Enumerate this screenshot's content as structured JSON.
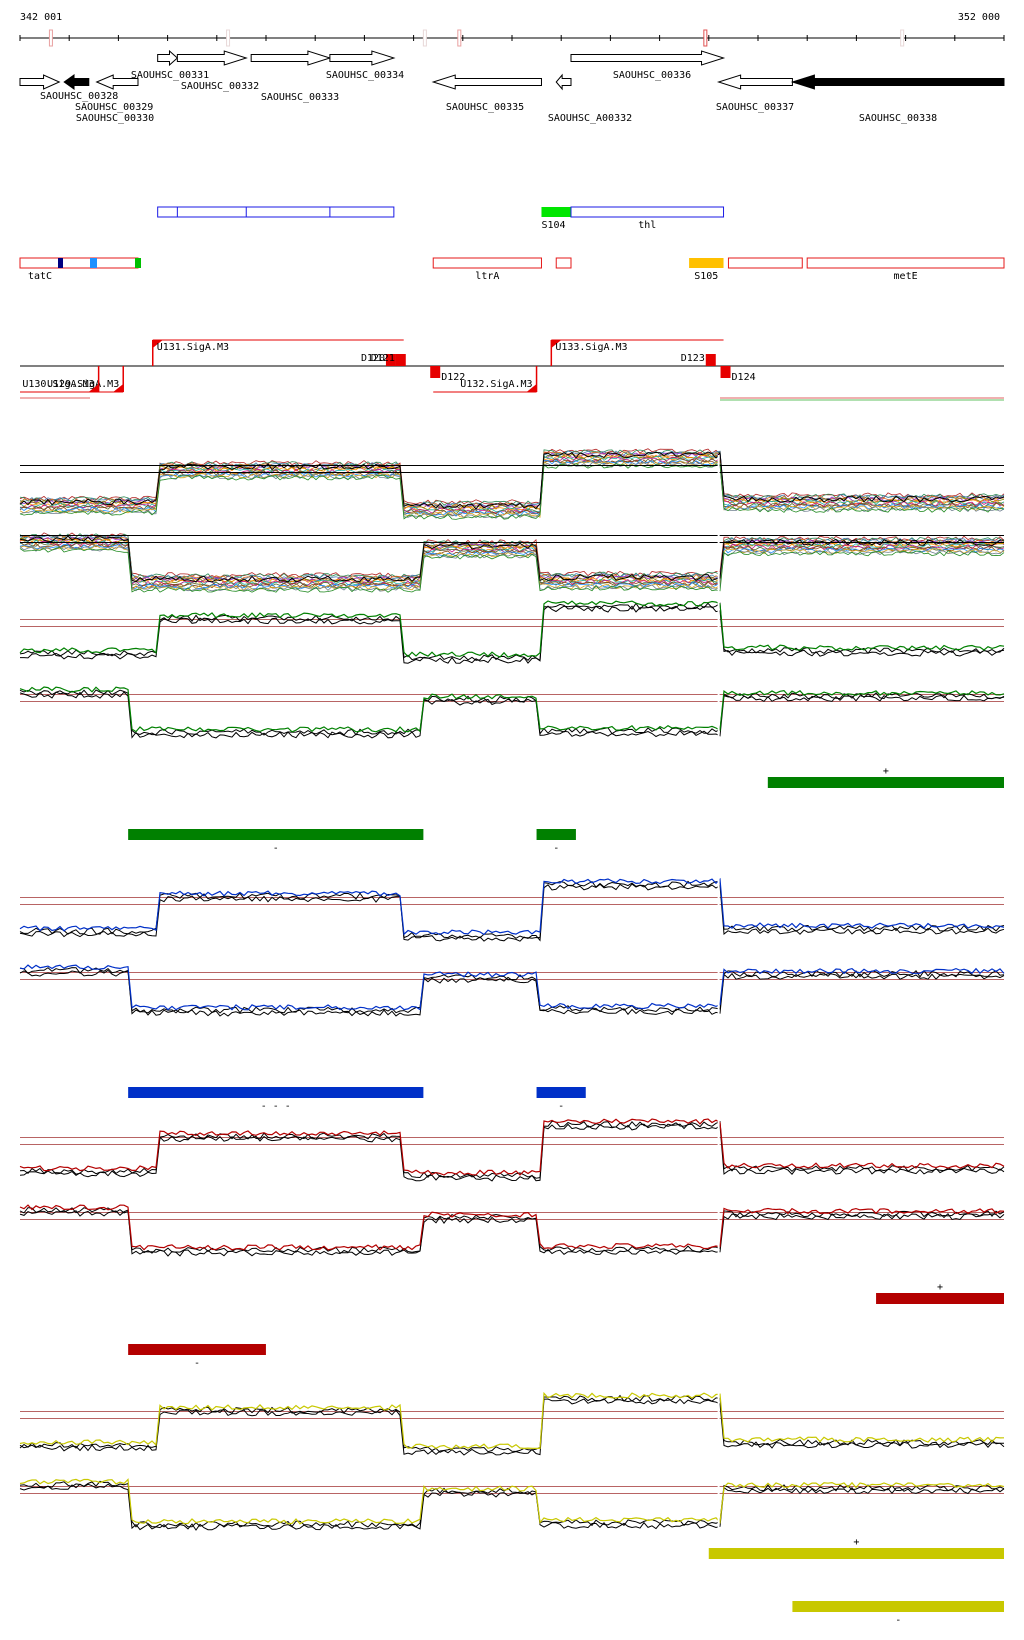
{
  "axis": {
    "start_label": "342 001",
    "end_label": "352 000",
    "start_bp": 342001,
    "end_bp": 352000
  },
  "colors": {
    "cds_outline": "#000000",
    "cds_filled": "#000000",
    "domain_box": "#1a1ae6",
    "feature_box": "#e61a1a",
    "promoter": "#e60000",
    "tatC_marks": [
      "#000080",
      "#1e90ff",
      "#00c000"
    ],
    "S104": "#00e600",
    "S105": "#ffc000",
    "track_green": "#008000",
    "track_blue": "#0030c8",
    "track_red": "#b40000",
    "track_yellow": "#c8c800",
    "threshold": "#a03030"
  },
  "genes": [
    {
      "name": "SAOUHSC_00328",
      "start": 342001,
      "end": 342400,
      "strand": "+",
      "filled": false
    },
    {
      "name": "SAOUHSC_00329",
      "start": 342450,
      "end": 342700,
      "strand": "-",
      "filled": true
    },
    {
      "name": "SAOUHSC_00330",
      "start": 342780,
      "end": 343200,
      "strand": "-",
      "filled": false
    },
    {
      "name": "SAOUHSC_00331",
      "start": 343400,
      "end": 343600,
      "strand": "+",
      "filled": false
    },
    {
      "name": "SAOUHSC_00332",
      "start": 343600,
      "end": 344300,
      "strand": "+",
      "filled": false
    },
    {
      "name": "SAOUHSC_00333",
      "start": 344350,
      "end": 345150,
      "strand": "+",
      "filled": false
    },
    {
      "name": "SAOUHSC_00334",
      "start": 345150,
      "end": 345800,
      "strand": "+",
      "filled": false
    },
    {
      "name": "SAOUHSC_00335",
      "start": 346200,
      "end": 347300,
      "strand": "-",
      "filled": false
    },
    {
      "name": "SAOUHSC_A00332",
      "start": 347450,
      "end": 347600,
      "strand": "-",
      "filled": false
    },
    {
      "name": "SAOUHSC_00336",
      "start": 347600,
      "end": 349150,
      "strand": "+",
      "filled": false
    },
    {
      "name": "SAOUHSC_00337",
      "start": 349100,
      "end": 349850,
      "strand": "-",
      "filled": false
    },
    {
      "name": "SAOUHSC_00338",
      "start": 349850,
      "end": 352000,
      "strand": "-",
      "filled": true
    }
  ],
  "domains": [
    {
      "label": "",
      "start": 343400,
      "end": 345800,
      "kind": "box"
    },
    {
      "label": "S104",
      "start": 347300,
      "end": 347600,
      "kind": "fill"
    },
    {
      "label": "thl",
      "start": 347600,
      "end": 349150,
      "kind": "box"
    }
  ],
  "features": [
    {
      "label": "tatC",
      "start": 342001,
      "end": 343200
    },
    {
      "label": "ltrA",
      "start": 346200,
      "end": 347300
    },
    {
      "label": "",
      "start": 347450,
      "end": 347600
    },
    {
      "label": "S105",
      "start": 348800,
      "end": 349150,
      "filled": true
    },
    {
      "label": "",
      "start": 349200,
      "end": 349950
    },
    {
      "label": "metE",
      "start": 350000,
      "end": 352000
    }
  ],
  "transcripts": [
    {
      "label": "U129.SigA.M3",
      "pos": 343050,
      "strand": "-",
      "span": [
        342001,
        343050
      ]
    },
    {
      "label": "U130.SigA.M3",
      "pos": 342800,
      "strand": "-",
      "span": [
        342001,
        342800
      ]
    },
    {
      "label": "U131.SigA.M3",
      "pos": 343350,
      "strand": "+",
      "span": [
        343350,
        345900
      ]
    },
    {
      "label": "D120",
      "pos": 345750,
      "strand": "+",
      "span": null
    },
    {
      "label": "D121",
      "pos": 345850,
      "strand": "+",
      "span": null
    },
    {
      "label": "D122",
      "pos": 346200,
      "strand": "-",
      "span": null
    },
    {
      "label": "U132.SigA.M3",
      "pos": 347250,
      "strand": "-",
      "span": [
        346200,
        347250
      ]
    },
    {
      "label": "U133.SigA.M3",
      "pos": 347400,
      "strand": "+",
      "span": [
        347400,
        349150
      ]
    },
    {
      "label": "D123",
      "pos": 349000,
      "strand": "+",
      "span": null
    },
    {
      "label": "D124",
      "pos": 349150,
      "strand": "-",
      "span": null
    }
  ],
  "tracks": [
    {
      "color_key": "track_green",
      "plus_segments": [
        {
          "start": 349600,
          "end": 352000,
          "label": "+"
        }
      ],
      "minus_segments": [
        {
          "start": 343100,
          "end": 346100,
          "label": "-"
        },
        {
          "start": 347250,
          "end": 347650,
          "label": "-"
        }
      ]
    },
    {
      "color_key": "track_blue",
      "plus_segments": [],
      "minus_segments": [
        {
          "start": 343100,
          "end": 346100,
          "label": "- - -"
        },
        {
          "start": 347250,
          "end": 347750,
          "label": "-"
        }
      ]
    },
    {
      "color_key": "track_red",
      "plus_segments": [
        {
          "start": 350700,
          "end": 352000,
          "label": "+"
        }
      ],
      "minus_segments": [
        {
          "start": 343100,
          "end": 344500,
          "label": "-"
        }
      ]
    },
    {
      "color_key": "track_yellow",
      "plus_segments": [
        {
          "start": 349000,
          "end": 352000,
          "label": "+"
        }
      ],
      "minus_segments": [
        {
          "start": 349850,
          "end": 352000,
          "label": "-"
        }
      ]
    }
  ]
}
